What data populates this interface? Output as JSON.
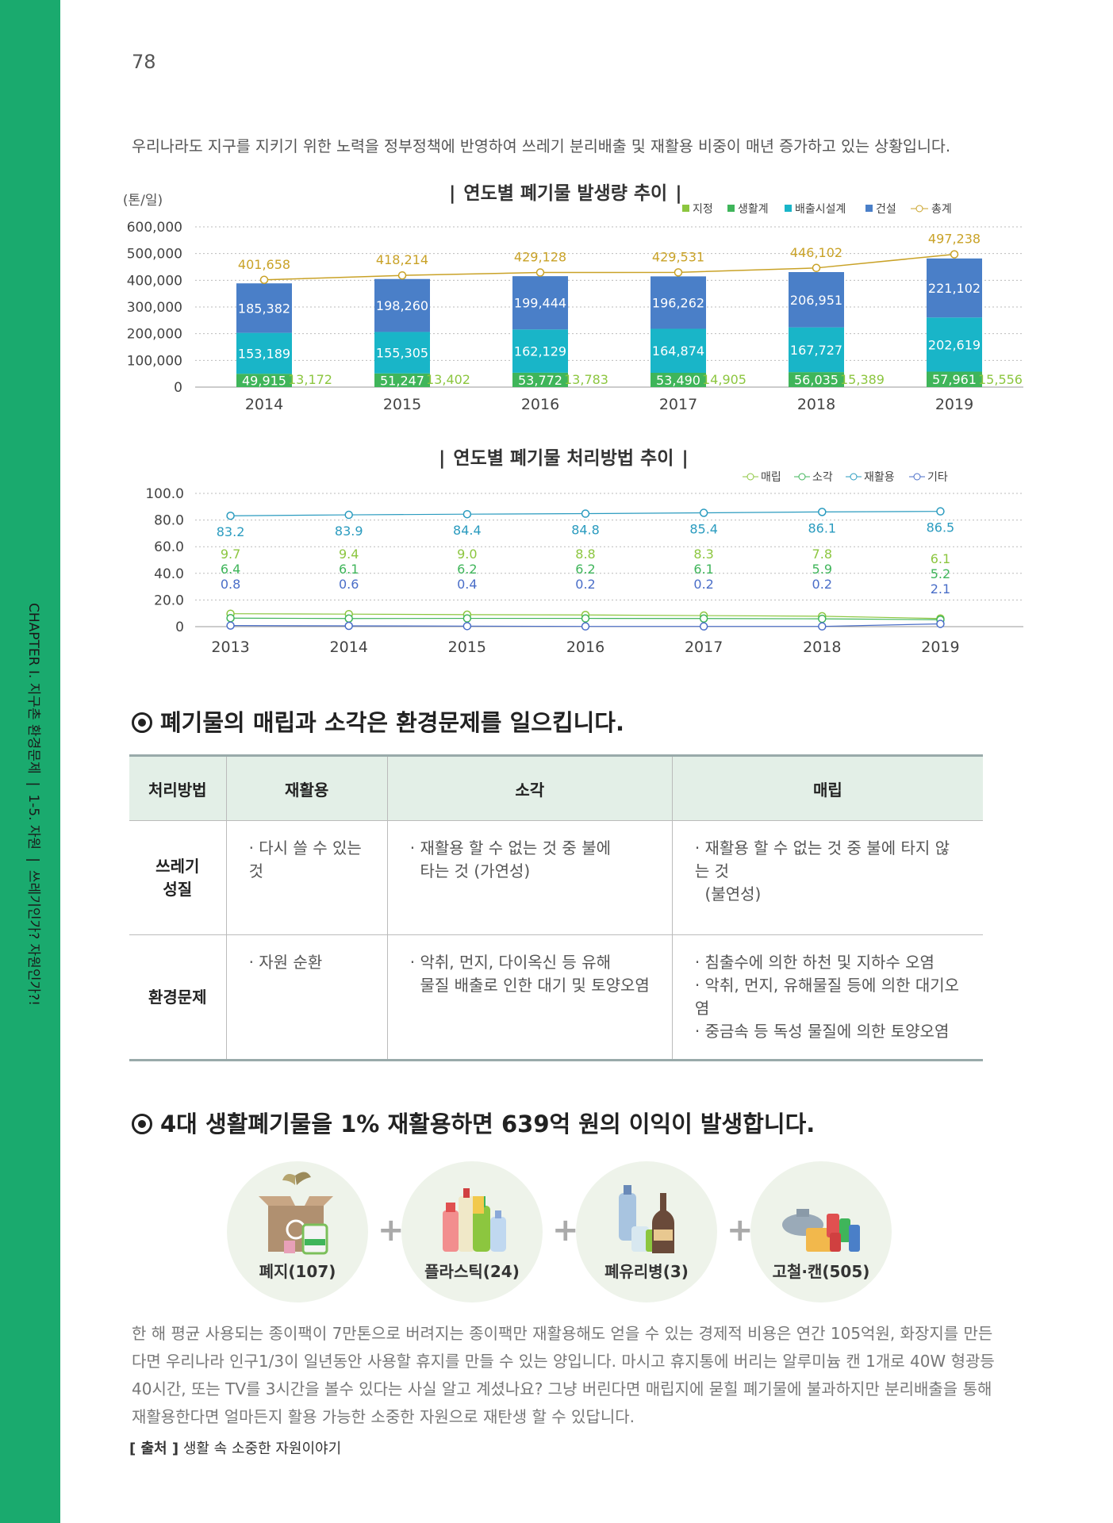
{
  "page_number": "78",
  "sidebar": {
    "chapter": "CHAPTER I. 지구촌 환경문제",
    "section": "1-5. 자원",
    "topic": "쓰레기인가? 자원인가?!",
    "separator": "|"
  },
  "intro": "우리나라도 지구를 지키기 위한 노력을 정부정책에 반영하여 쓰레기 분리배출 및 재활용 비중이 매년 증가하고 있는 상황입니다.",
  "colors": {
    "sidebar": "#1aaa6e",
    "jijeong": "#8cc63f",
    "saenghwal": "#3fb55a",
    "baechul": "#19b5c8",
    "geonseol": "#4a7fc8",
    "total": "#c9a227",
    "landfill": "#8cc63f",
    "incineration": "#3fb55a",
    "recycle": "#2a9bbf",
    "other": "#4a6ec8"
  },
  "chart_data": [
    {
      "type": "bar",
      "title": "연도별 폐기물 발생량 추이",
      "ylabel": "(톤/일)",
      "ylim": [
        0,
        600000
      ],
      "yticks": [
        "0",
        "100,000",
        "200,000",
        "300,000",
        "400,000",
        "500,000",
        "600,000"
      ],
      "categories": [
        "2014",
        "2015",
        "2016",
        "2017",
        "2018",
        "2019"
      ],
      "stacked": true,
      "series": [
        {
          "name": "지정",
          "values": [
            13172,
            13402,
            13783,
            14905,
            15389,
            15556
          ],
          "labels": [
            "13,172",
            "13,402",
            "13,783",
            "14,905",
            "15,389",
            "15,556"
          ]
        },
        {
          "name": "생활계",
          "values": [
            49915,
            51247,
            53772,
            53490,
            56035,
            57961
          ],
          "labels": [
            "49,915",
            "51,247",
            "53,772",
            "53,490",
            "56,035",
            "57,961"
          ]
        },
        {
          "name": "배출시설계",
          "values": [
            153189,
            155305,
            162129,
            164874,
            167727,
            202619
          ],
          "labels": [
            "153,189",
            "155,305",
            "162,129",
            "164,874",
            "167,727",
            "202,619"
          ]
        },
        {
          "name": "건설",
          "values": [
            185382,
            198260,
            199444,
            196262,
            206951,
            221102
          ],
          "labels": [
            "185,382",
            "198,260",
            "199,444",
            "196,262",
            "206,951",
            "221,102"
          ]
        },
        {
          "name": "총계",
          "type": "line",
          "values": [
            401658,
            418214,
            429128,
            429531,
            446102,
            497238
          ],
          "labels": [
            "401,658",
            "418,214",
            "429,128",
            "429,531",
            "446,102",
            "497,238"
          ]
        }
      ],
      "legend": "top-right",
      "grid": true
    },
    {
      "type": "line",
      "title": "연도별 폐기물 처리방법 추이",
      "ylim": [
        0,
        100
      ],
      "yticks": [
        "0",
        "20.0",
        "40.0",
        "60.0",
        "80.0",
        "100.0"
      ],
      "categories": [
        "2013",
        "2014",
        "2015",
        "2016",
        "2017",
        "2018",
        "2019"
      ],
      "series": [
        {
          "name": "매립",
          "values": [
            9.7,
            9.4,
            9.0,
            8.8,
            8.3,
            7.8,
            6.1
          ],
          "labels": [
            "9.7",
            "9.4",
            "9.0",
            "8.8",
            "8.3",
            "7.8",
            "6.1"
          ]
        },
        {
          "name": "소각",
          "values": [
            6.4,
            6.1,
            6.2,
            6.2,
            6.1,
            5.9,
            5.2
          ],
          "labels": [
            "6.4",
            "6.1",
            "6.2",
            "6.2",
            "6.1",
            "5.9",
            "5.2"
          ]
        },
        {
          "name": "재활용",
          "values": [
            83.2,
            83.9,
            84.4,
            84.8,
            85.4,
            86.1,
            86.5
          ],
          "labels": [
            "83.2",
            "83.9",
            "84.4",
            "84.8",
            "85.4",
            "86.1",
            "86.5"
          ]
        },
        {
          "name": "기타",
          "values": [
            0.8,
            0.6,
            0.4,
            0.2,
            0.2,
            0.2,
            2.1
          ],
          "labels": [
            "0.8",
            "0.6",
            "0.4",
            "0.2",
            "0.2",
            "0.2",
            "2.1"
          ]
        }
      ],
      "legend": "top-right",
      "grid": true
    }
  ],
  "section1": {
    "title": "폐기물의 매립과 소각은 환경문제를 일으킵니다.",
    "table": {
      "headers": [
        "처리방법",
        "재활용",
        "소각",
        "매립"
      ],
      "rows": [
        {
          "head": [
            "쓰레기",
            "성질"
          ],
          "recycle": [
            "· 다시 쓸 수 있는 것"
          ],
          "incinerate": [
            "· 재활용 할 수 없는 것 중 불에",
            "  타는 것 (가연성)"
          ],
          "landfill": [
            "· 재활용 할 수 없는 것 중 불에 타지 않는 것",
            "  (불연성)"
          ]
        },
        {
          "head": [
            "환경문제"
          ],
          "recycle": [
            "· 자원 순환"
          ],
          "incinerate": [
            "· 악취, 먼지, 다이옥신 등 유해",
            "  물질 배출로 인한 대기 및 토양오염"
          ],
          "landfill": [
            "· 침출수에 의한 하천 및 지하수 오염",
            "· 악취, 먼지, 유해물질 등에 의한 대기오염",
            "· 중금속 등 독성 물질에 의한 토양오염"
          ]
        }
      ]
    }
  },
  "section2": {
    "title": "4대 생활폐기물을 1% 재활용하면 639억 원의 이익이 발생합니다.",
    "items": [
      "폐지(107)",
      "플라스틱(24)",
      "폐유리병(3)",
      "고철·캔(505)"
    ],
    "plus": "+"
  },
  "paragraph": [
    "한 해 평균 사용되는 종이팩이 7만톤으로 버려지는 종이팩만 재활용해도 얻을 수 있는 경제적 비용은 연간 105억원, 화장지를 만든",
    "다면 우리나라 인구1/3이 일년동안 사용할 휴지를 만들 수 있는 양입니다. 마시고 휴지통에 버리는 알루미늄 캔 1개로 40W 형광등",
    "40시간, 또는 TV를 3시간을 볼수 있다는 사실 알고 계셨나요? 그냥 버린다면 매립지에 묻힐 폐기물에 불과하지만 분리배출을 통해",
    "재활용한다면 얼마든지 활용 가능한 소중한 자원으로 재탄생 할 수 있답니다."
  ],
  "source": {
    "label": "[ 출처 ]",
    "text": "생활 속 소중한 자원이야기"
  }
}
